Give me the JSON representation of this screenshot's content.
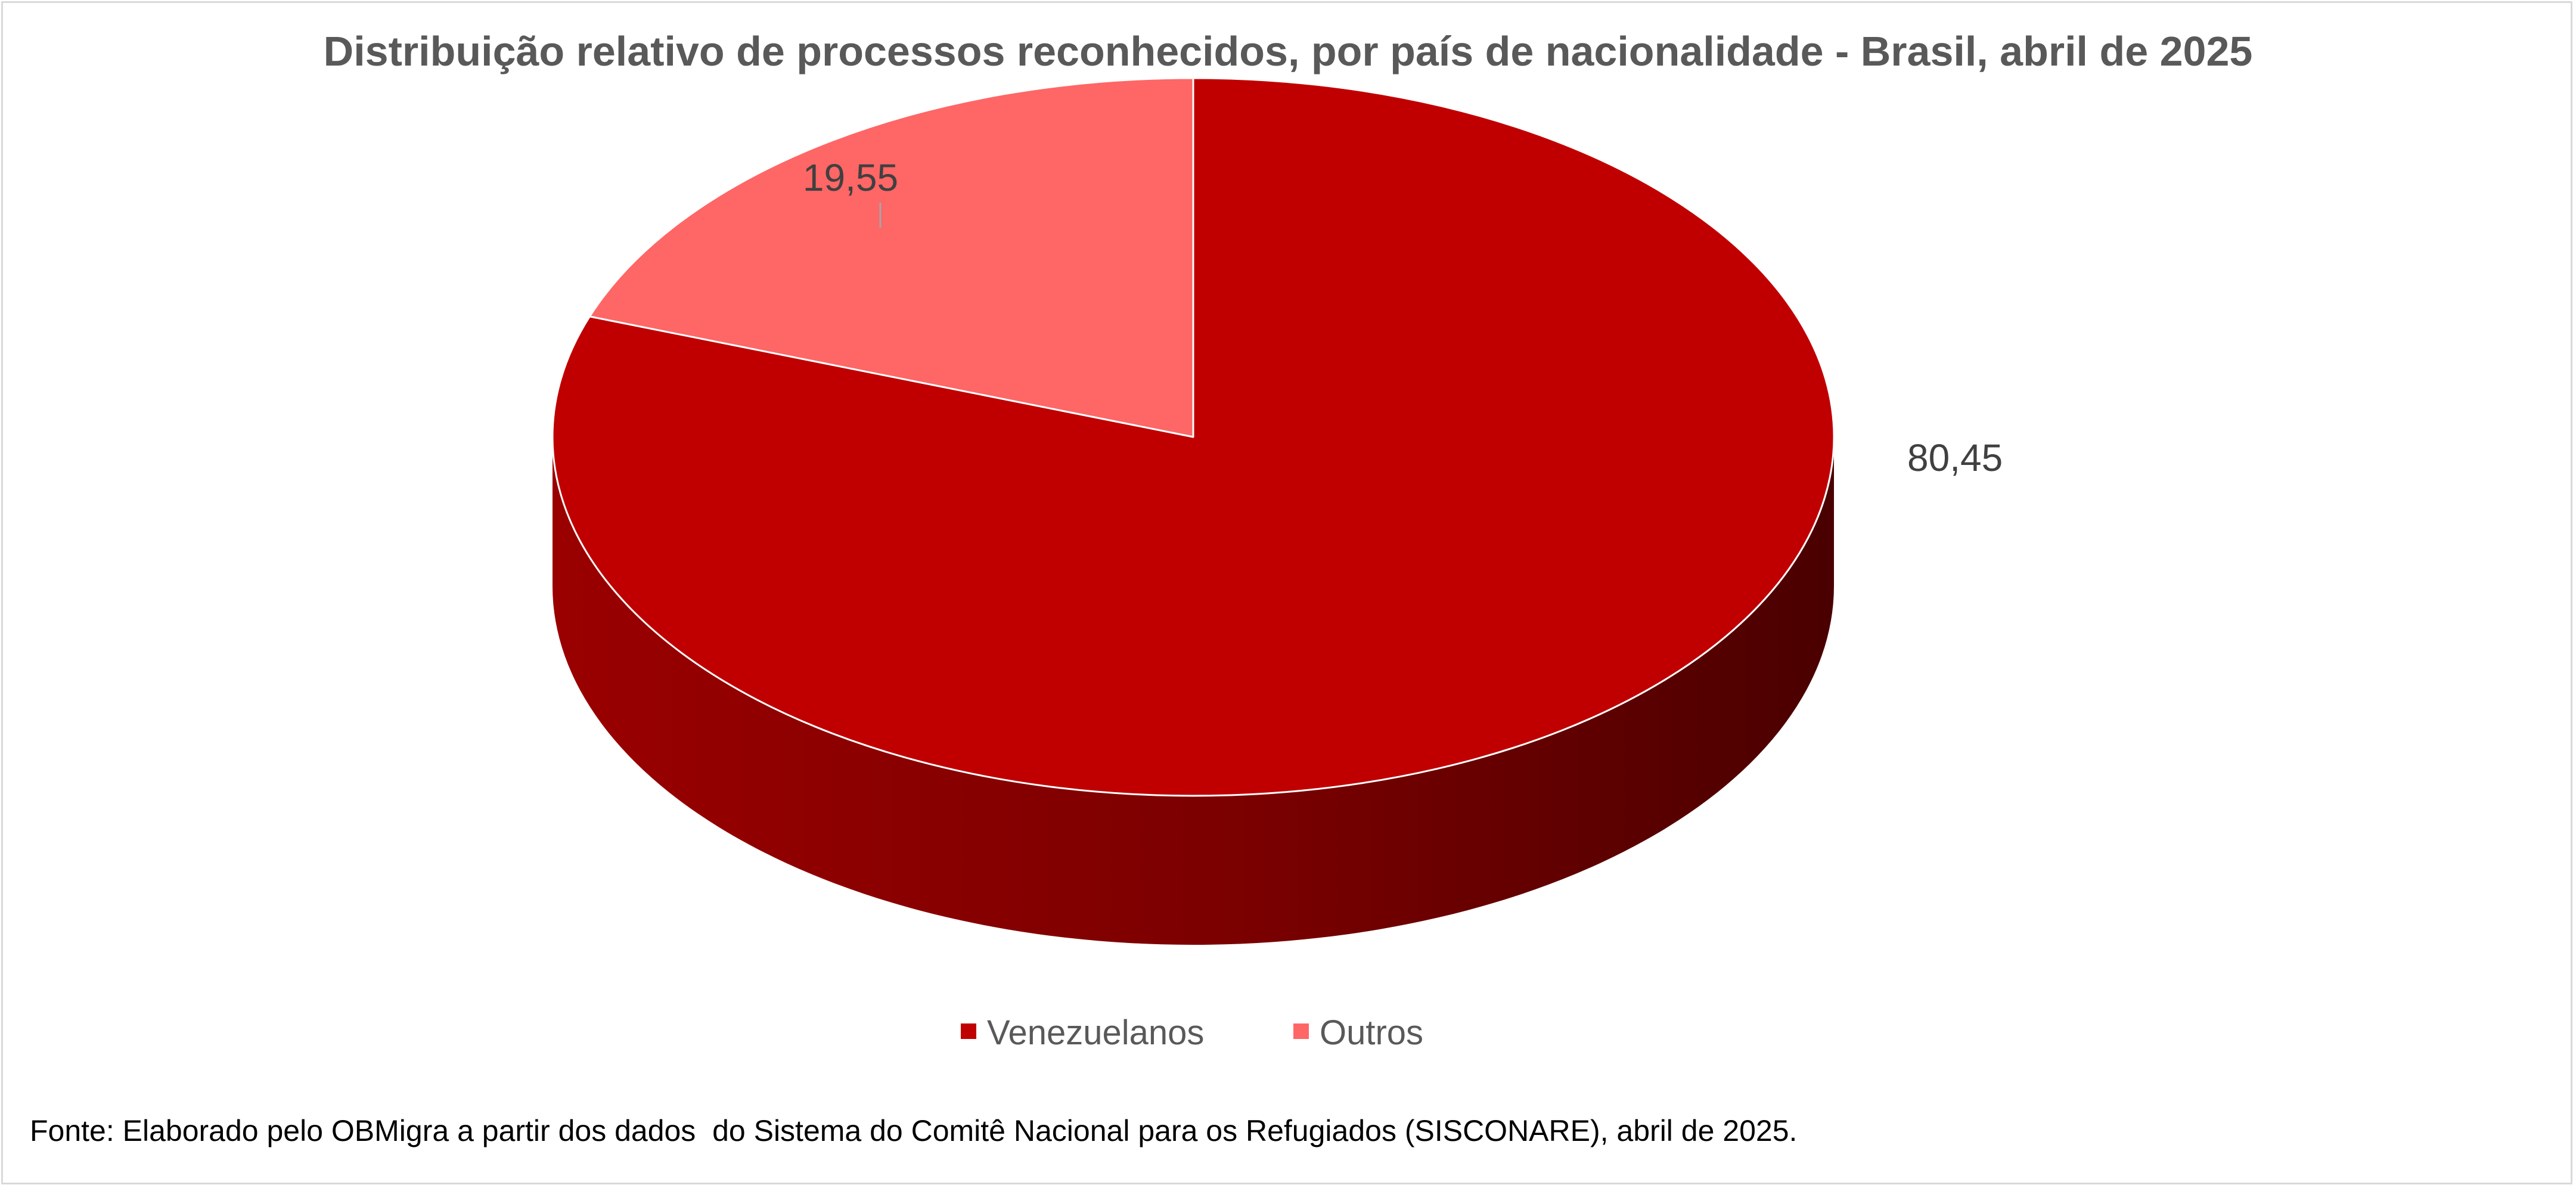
{
  "chart_data": {
    "type": "pie",
    "title": "Distribuição relativo de processos reconhecidos, por país de nacionalidade - Brasil, abril de 2025",
    "style": "3d",
    "legend_position": "bottom",
    "slices": [
      {
        "name": "Venezuelanos",
        "value": 80.45,
        "label": "80,45",
        "color": "#C00000"
      },
      {
        "name": "Outros",
        "value": 19.55,
        "label": "19,55",
        "color": "#FF6666"
      }
    ]
  },
  "source_note": "Fonte: Elaborado pelo OBMigra a partir dos dados  do Sistema do Comitê Nacional para os Refugiados (SISCONARE), abril de 2025."
}
